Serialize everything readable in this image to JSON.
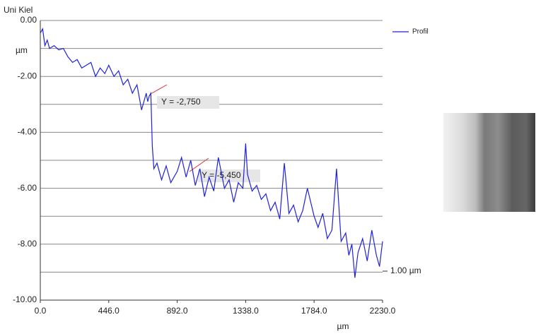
{
  "chart_data": {
    "type": "line",
    "title": "Uni Kiel",
    "y_unit": "µm",
    "x_label": "µm",
    "xlim": [
      0,
      2230
    ],
    "xticks": [
      {
        "value": 0,
        "label": "0.0"
      },
      {
        "value": 446,
        "label": "446.0"
      },
      {
        "value": 892,
        "label": "892.0"
      },
      {
        "value": 1338,
        "label": "1338.0"
      },
      {
        "value": 1784,
        "label": "1784.0"
      },
      {
        "value": 2230,
        "label": "2230.0"
      }
    ],
    "ylim": [
      -10,
      0
    ],
    "yticks": [
      {
        "value": 0,
        "label": "0.00"
      },
      {
        "value": -2,
        "label": "-2.00"
      },
      {
        "value": -4,
        "label": "-4.00"
      },
      {
        "value": -6,
        "label": "-6.00"
      },
      {
        "value": -8,
        "label": "-8.00"
      },
      {
        "value": -10,
        "label": "-10.00"
      }
    ],
    "minor_yticks": [
      -1,
      -3,
      -5,
      -7,
      -9
    ],
    "grid": true,
    "legend_position": "top-right",
    "annotations": [
      "Y = -2,750",
      "Y = -5,450"
    ],
    "scale_label": "1.00 µm",
    "series": [
      {
        "name": "Profil",
        "color": "#2020dd",
        "x": [
          0,
          15,
          30,
          45,
          60,
          90,
          120,
          150,
          180,
          210,
          240,
          270,
          300,
          330,
          360,
          390,
          420,
          446,
          480,
          510,
          540,
          570,
          600,
          630,
          660,
          690,
          700,
          710,
          720,
          725,
          730,
          740,
          760,
          790,
          820,
          850,
          892,
          920,
          950,
          980,
          1010,
          1040,
          1070,
          1100,
          1130,
          1160,
          1200,
          1230,
          1260,
          1290,
          1320,
          1338,
          1350,
          1380,
          1410,
          1440,
          1470,
          1500,
          1530,
          1560,
          1590,
          1620,
          1650,
          1680,
          1710,
          1740,
          1784,
          1810,
          1840,
          1870,
          1900,
          1930,
          1960,
          1990,
          2010,
          2030,
          2050,
          2070,
          2100,
          2130,
          2160,
          2190,
          2210,
          2230
        ],
        "values": [
          -0.45,
          -0.3,
          -0.9,
          -0.7,
          -1.0,
          -0.9,
          -1.05,
          -1.0,
          -1.3,
          -1.5,
          -1.4,
          -1.7,
          -1.6,
          -1.5,
          -2.0,
          -1.7,
          -1.9,
          -1.6,
          -2.0,
          -1.8,
          -2.3,
          -2.1,
          -2.6,
          -2.3,
          -3.2,
          -2.6,
          -2.9,
          -2.7,
          -2.6,
          -3.6,
          -4.5,
          -5.3,
          -5.1,
          -5.7,
          -5.2,
          -5.8,
          -5.4,
          -4.9,
          -5.6,
          -5.0,
          -5.9,
          -5.3,
          -6.3,
          -5.6,
          -6.1,
          -4.9,
          -6.0,
          -5.7,
          -6.5,
          -5.8,
          -6.0,
          -4.4,
          -5.5,
          -6.1,
          -5.9,
          -6.4,
          -6.2,
          -6.8,
          -6.5,
          -7.1,
          -5.1,
          -6.9,
          -6.6,
          -7.2,
          -6.8,
          -6.0,
          -7.0,
          -7.4,
          -6.9,
          -7.8,
          -7.5,
          -5.3,
          -7.9,
          -7.6,
          -8.4,
          -8.0,
          -9.2,
          -8.3,
          -7.8,
          -8.6,
          -7.5,
          -8.4,
          -8.8,
          -7.9
        ]
      }
    ]
  }
}
